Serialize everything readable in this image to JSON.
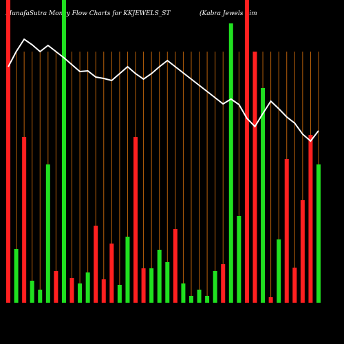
{
  "chart_data": {
    "type": "bar",
    "title": "MunafaSutra  Money  Flow  Charts for KKJEWELS_ST",
    "subtitle": "(Kabra  Jewels Lim",
    "values": [
      440,
      78,
      241,
      32,
      19,
      201,
      46,
      440,
      36,
      28,
      44,
      112,
      34,
      86,
      26,
      96,
      241,
      50,
      50,
      77,
      59,
      107,
      28,
      10,
      19,
      10,
      46,
      56,
      406,
      126,
      440,
      365,
      312,
      8,
      92,
      209,
      51,
      149,
      244,
      201
    ],
    "colors": [
      "#ff2020",
      "#20e020",
      "#ff2020",
      "#20e020",
      "#20e020",
      "#20e020",
      "#ff2020",
      "#20e020",
      "#ff2020",
      "#20e020",
      "#20e020",
      "#ff2020",
      "#ff2020",
      "#ff2020",
      "#20e020",
      "#20e020",
      "#ff2020",
      "#ff2020",
      "#20e020",
      "#20e020",
      "#20e020",
      "#ff2020",
      "#20e020",
      "#20e020",
      "#20e020",
      "#20e020",
      "#20e020",
      "#ff2020",
      "#20e020",
      "#20e020",
      "#ff2020",
      "#ff2020",
      "#20e020",
      "#ff2020",
      "#20e020",
      "#ff2020",
      "#ff2020",
      "#ff2020",
      "#ff2020",
      "#20e020"
    ],
    "line": {
      "color": "#ffffff",
      "values": [
        343,
        365,
        383,
        375,
        365,
        374,
        365,
        356,
        346,
        336,
        337,
        328,
        326,
        323,
        333,
        343,
        333,
        325,
        333,
        343,
        352,
        343,
        334,
        325,
        316,
        307,
        298,
        289,
        296,
        288,
        268,
        256,
        275,
        293,
        282,
        270,
        261,
        245,
        235,
        250
      ]
    },
    "ylim": [
      0,
      440
    ],
    "grid_color": "#b8600a"
  }
}
